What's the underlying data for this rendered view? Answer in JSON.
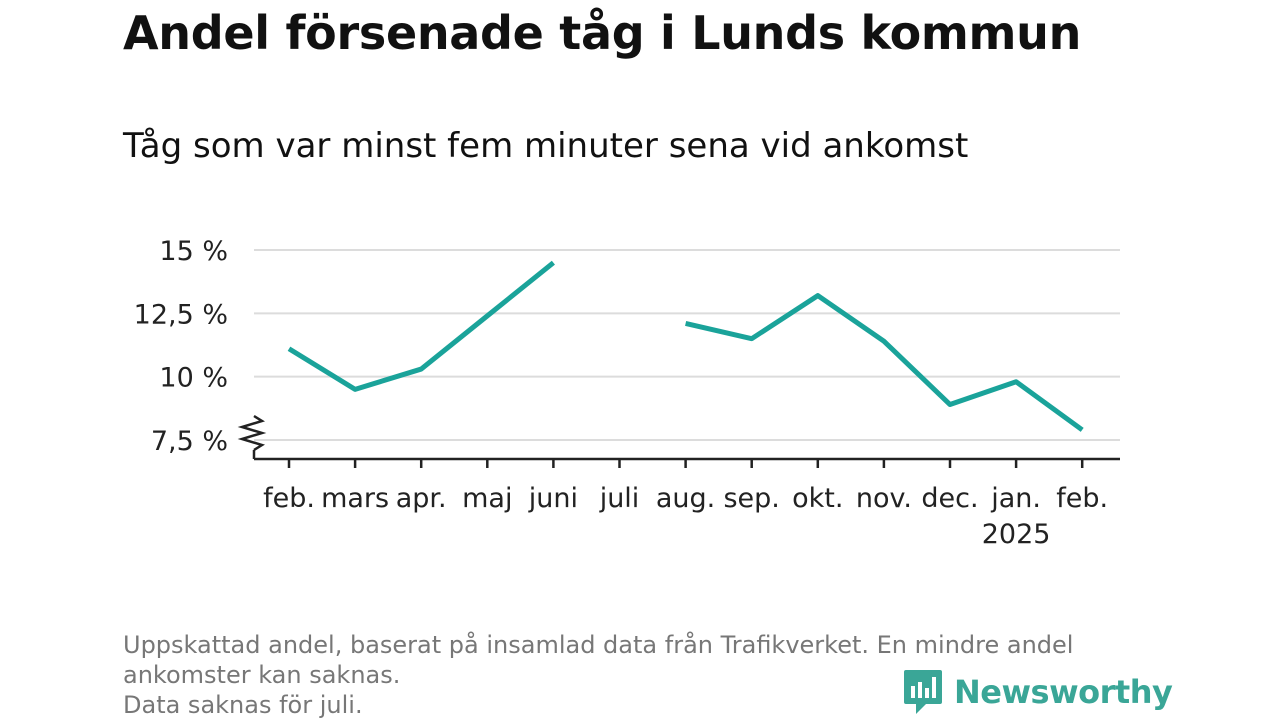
{
  "title": "Andel försenade tåg i Lunds kommun",
  "subtitle": "Tåg som var minst fem minuter sena vid ankomst",
  "chart_data": {
    "type": "line",
    "categories": [
      "feb.",
      "mars",
      "apr.",
      "maj",
      "juni",
      "juli",
      "aug.",
      "sep.",
      "okt.",
      "nov.",
      "dec.",
      "jan.",
      "feb."
    ],
    "year_labels": [
      "",
      "",
      "",
      "",
      "",
      "",
      "",
      "",
      "",
      "",
      "",
      "2025",
      ""
    ],
    "series": [
      {
        "values": [
          11.1,
          9.5,
          10.3,
          12.4,
          14.5,
          null,
          12.1,
          11.5,
          13.2,
          11.4,
          8.9,
          9.8,
          7.9
        ]
      }
    ],
    "y_ticks": [
      7.5,
      10,
      12.5,
      15
    ],
    "y_tick_labels": [
      "7,5 %",
      "10 %",
      "12,5 %",
      "15 %"
    ],
    "ylim": [
      7.5,
      15
    ],
    "axis_break": true,
    "grid": "horizontal",
    "line_color": "#1aa39a"
  },
  "footnote": {
    "line1": "Uppskattad andel, baserat på insamlad data från Trafikverket. En mindre andel",
    "line2": "ankomster kan saknas.",
    "line3": "Data saknas för juli."
  },
  "logo": {
    "name": "Newsworthy",
    "icon": "newsworthy-logo-icon",
    "color": "#3aa697"
  }
}
